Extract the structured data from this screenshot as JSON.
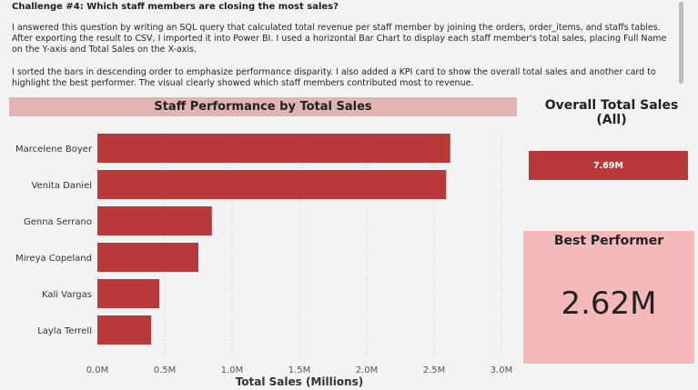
{
  "text_box": {
    "title": "Challenge #4: Which staff members are closing the most sales?",
    "paragraph1": "I answered this question by writing an SQL query that calculated total revenue per staff member by joining the orders, order_items, and staffs tables. After exporting the result to CSV, I imported it into Power BI. I used a horizontal Bar Chart to display each staff member's total sales, placing Full Name on the Y-axis and Total Sales on the X-axis.",
    "paragraph2": "I sorted the bars in descending order to emphasize performance disparity. I also added a KPI card to show the overall total sales and another card to highlight the best performer. The visual clearly showed which staff members contributed most to revenue."
  },
  "kpi_total": {
    "title": "Overall Total Sales (All)",
    "value": "7.69M"
  },
  "best_performer": {
    "title": "Best Performer",
    "value": "2.62M"
  },
  "colors": {
    "bar": "#b9393b",
    "title_bar": "#e2b3b3",
    "best_card": "#f4b9b8"
  },
  "chart_data": {
    "type": "bar",
    "orientation": "horizontal",
    "title": "Staff Performance by Total Sales",
    "xlabel": "Total Sales (Millions)",
    "ylabel": "",
    "categories": [
      "Marcelene Boyer",
      "Venita Daniel",
      "Genna Serrano",
      "Mireya Copeland",
      "Kali Vargas",
      "Layla Terrell"
    ],
    "values": [
      2.62,
      2.59,
      0.85,
      0.75,
      0.46,
      0.4
    ],
    "xlim": [
      0,
      3.0
    ],
    "xticks": [
      0,
      0.5,
      1.0,
      1.5,
      2.0,
      2.5,
      3.0
    ],
    "xtick_labels": [
      "0.0M",
      "0.5M",
      "1.0M",
      "1.5M",
      "2.0M",
      "2.5M",
      "3.0M"
    ],
    "grid": true
  }
}
